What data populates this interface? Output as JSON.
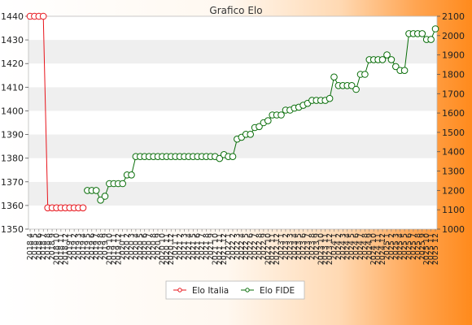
{
  "chart_data": {
    "type": "line",
    "title": "Grafico Elo",
    "x_labels": [
      "2018 4",
      "2018 5",
      "2018 6",
      "2018 7",
      "2018 8",
      "2018 9",
      "2018 10",
      "2018 11",
      "2018 12",
      "2019 1",
      "2019 2",
      "2019 3",
      "2019 4",
      "2019 5",
      "2019 6",
      "2019 7",
      "2019 8",
      "2019 9",
      "2019 10",
      "2019 11",
      "2019 12",
      "2020 1",
      "2020 2",
      "2020 3",
      "2020 4",
      "2020 5",
      "2020 6",
      "2020 7",
      "2020 8",
      "2020 9",
      "2020 10",
      "2020 11",
      "2020 12",
      "2021 1",
      "2021 2",
      "2021 3",
      "2021 4",
      "2021 5",
      "2021 6",
      "2021 7",
      "2021 8",
      "2021 9",
      "2021 10",
      "2021 11",
      "2021 12",
      "2022 1",
      "2022 2",
      "2022 3",
      "2022 4",
      "2022 5",
      "2022 6",
      "2022 7",
      "2022 8",
      "2022 9",
      "2022 10",
      "2022 11",
      "2022 12",
      "2023 1",
      "2023 2",
      "2023 3",
      "2023 4",
      "2023 5",
      "2023 6",
      "2023 7",
      "2023 8",
      "2023 9",
      "2023 10",
      "2023 11",
      "2023 12",
      "2024 1",
      "2024 2",
      "2024 3",
      "2024 4",
      "2024 5",
      "2024 6",
      "2024 7",
      "2024 8",
      "2024 9",
      "2024 10",
      "2024 11",
      "2024 12",
      "2025 1",
      "2025 2",
      "2025 3",
      "2025 4",
      "2025 5",
      "2025 6",
      "2025 7",
      "2025 8",
      "2025 9",
      "2025 10",
      "2025 11",
      "2025 12"
    ],
    "left_axis": {
      "min": 1350,
      "max": 1440,
      "ticks": [
        1350,
        1360,
        1370,
        1380,
        1390,
        1400,
        1410,
        1420,
        1430,
        1440
      ]
    },
    "right_axis": {
      "min": 1000,
      "max": 2100,
      "ticks": [
        1000,
        1100,
        1200,
        1300,
        1400,
        1500,
        1600,
        1700,
        1800,
        1900,
        2000,
        2100
      ]
    },
    "grid": true,
    "legend_position": "bottom",
    "series": [
      {
        "name": "Elo Italia",
        "axis": "left",
        "color": "#e8141b",
        "values": [
          1440,
          1440,
          1440,
          1440,
          1359,
          1359,
          1359,
          1359,
          1359,
          1359,
          1359,
          1359,
          1359
        ]
      },
      {
        "name": "Elo FIDE",
        "axis": "right",
        "color": "#0a6e0a",
        "values": [
          null,
          null,
          null,
          null,
          null,
          null,
          null,
          null,
          null,
          null,
          null,
          null,
          null,
          1200,
          1200,
          1200,
          1150,
          1170,
          1235,
          1235,
          1235,
          1235,
          1280,
          1280,
          1375,
          1375,
          1375,
          1375,
          1375,
          1375,
          1375,
          1375,
          1375,
          1375,
          1375,
          1375,
          1375,
          1375,
          1375,
          1375,
          1375,
          1375,
          1375,
          1365,
          1385,
          1375,
          1375,
          1465,
          1475,
          1490,
          1490,
          1525,
          1530,
          1550,
          1560,
          1590,
          1590,
          1590,
          1615,
          1615,
          1625,
          1630,
          1640,
          1650,
          1665,
          1665,
          1665,
          1665,
          1675,
          1786,
          1742,
          1742,
          1742,
          1742,
          1722,
          1800,
          1800,
          1876,
          1876,
          1876,
          1876,
          1900,
          1876,
          1840,
          1820,
          1820,
          2010,
          2010,
          2010,
          2010,
          1980,
          1980,
          2035
        ]
      }
    ]
  }
}
